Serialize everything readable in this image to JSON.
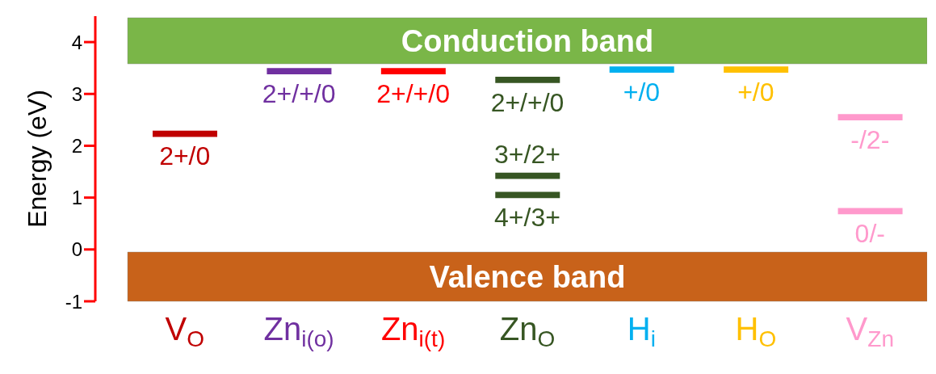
{
  "chart_data": {
    "type": "bar",
    "ylabel": "Energy (eV)",
    "categories": [
      "V$_{O}$",
      "Zn$_{i(o)}$",
      "Zn$_{i(t)}$",
      "Zn$_{O}$",
      "H$_{i}$",
      "H$_{O}$",
      "V$_{Zn}$"
    ],
    "series": [
      {
        "colors": [
          "#c00000",
          "#7030a0",
          "#ff0000",
          "#375623",
          "#00b0f0",
          "#ffc000",
          "#ff99cc"
        ],
        "base": [
          2.17,
          3.38,
          3.38,
          3.21,
          3.41,
          3.41,
          2.49
        ],
        "values": [
          0.12,
          0.12,
          0.12,
          0.12,
          0.12,
          0.12,
          0.12
        ]
      },
      {
        "colors": [
          "#c00000",
          "#7030a0",
          "#ff0000",
          "#375623",
          "#00b0f0",
          "#ffc000",
          "#ff99cc"
        ],
        "base": [
          null,
          null,
          null,
          1.36,
          null,
          null,
          0.68
        ],
        "values": [
          null,
          null,
          null,
          0.12,
          null,
          null,
          0.12
        ]
      },
      {
        "colors": [
          "#c00000",
          "#7030a0",
          "#ff0000",
          "#375623",
          "#00b0f0",
          "#ffc000",
          "#ff99cc"
        ],
        "base": [
          null,
          null,
          null,
          0.99,
          null,
          null,
          null
        ],
        "values": [
          null,
          null,
          null,
          0.12,
          null,
          null,
          null
        ]
      }
    ],
    "ylim": [
      -1,
      4.5
    ],
    "yticks": [
      -1,
      0,
      1,
      2,
      3,
      4
    ],
    "bands": [
      {
        "axis": "y",
        "from": 3.58,
        "to": 4.47,
        "label": "Conduction band",
        "color": "#7ab648"
      },
      {
        "axis": "y",
        "from": -1,
        "to": -0.05,
        "label": "Valence band",
        "color": "#c8621a"
      }
    ],
    "annotations": [
      {
        "text": "2+/0",
        "x": "V$_{O}$",
        "y": 2.17
      },
      {
        "text": "2+/+/0",
        "x": "Zn$_{i(o)}$",
        "y": 3.38
      },
      {
        "text": "2+/+/0",
        "x": "Zn$_{i(t)}$",
        "y": 3.38
      },
      {
        "text": "2+/+/0",
        "x": "Zn$_{O}$",
        "y": 3.21
      },
      {
        "text": "3+/2+",
        "x": "Zn$_{O}$",
        "y": 1.48
      },
      {
        "text": "4+/3+",
        "x": "Zn$_{O}$",
        "y": 0.99
      },
      {
        "text": "+/0",
        "x": "H$_{i}$",
        "y": 3.41
      },
      {
        "text": "+/0",
        "x": "H$_{O}$",
        "y": 3.41
      },
      {
        "text": "-/2-",
        "x": "V$_{Zn}$",
        "y": 2.49
      },
      {
        "text": "0/-",
        "x": "V$_{Zn}$",
        "y": 0.68
      }
    ]
  }
}
